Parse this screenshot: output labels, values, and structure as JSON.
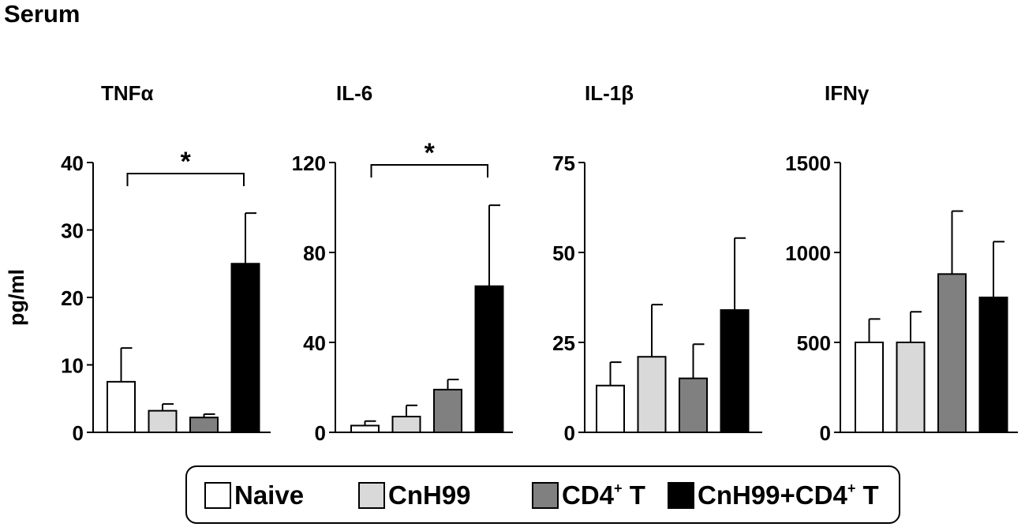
{
  "page": {
    "title": "Serum"
  },
  "legend": {
    "items": [
      {
        "label": "Naive",
        "sup": "",
        "suffix": "",
        "color": "#ffffff"
      },
      {
        "label": "CnH99",
        "sup": "",
        "suffix": "",
        "color": "#d9d9d9"
      },
      {
        "label": "CD4",
        "sup": "+",
        "suffix": " T",
        "color": "#808080"
      },
      {
        "label": "CnH99+CD4",
        "sup": "+",
        "suffix": " T",
        "color": "#000000"
      }
    ]
  },
  "chart_data": [
    {
      "type": "bar",
      "title": "TNFα",
      "ylabel": "pg/ml",
      "ylim": [
        0,
        40
      ],
      "yticks": [
        "0",
        "10",
        "20",
        "30",
        "40"
      ],
      "categories": [
        "Naive",
        "CnH99",
        "CD4+ T",
        "CnH99+CD4+ T"
      ],
      "values": [
        7.5,
        3.2,
        2.2,
        25
      ],
      "errors": [
        5,
        1,
        0.5,
        7.5
      ],
      "significance": {
        "label": "*",
        "from": 0,
        "to": 3
      }
    },
    {
      "type": "bar",
      "title": "IL-6",
      "ylabel": "",
      "ylim": [
        0,
        120
      ],
      "yticks": [
        "0",
        "40",
        "80",
        "120"
      ],
      "categories": [
        "Naive",
        "CnH99",
        "CD4+ T",
        "CnH99+CD4+ T"
      ],
      "values": [
        3,
        7,
        19,
        65
      ],
      "errors": [
        2,
        5,
        4.5,
        36
      ],
      "significance": {
        "label": "*",
        "from": 0,
        "to": 3
      }
    },
    {
      "type": "bar",
      "title": "IL-1β",
      "ylabel": "",
      "ylim": [
        0,
        75
      ],
      "yticks": [
        "0",
        "25",
        "50",
        "75"
      ],
      "categories": [
        "Naive",
        "CnH99",
        "CD4+ T",
        "CnH99+CD4+ T"
      ],
      "values": [
        13,
        21,
        15,
        34
      ],
      "errors": [
        6.5,
        14.5,
        9.5,
        20
      ],
      "significance": null
    },
    {
      "type": "bar",
      "title": "IFNγ",
      "ylabel": "",
      "ylim": [
        0,
        1500
      ],
      "yticks": [
        "0",
        "500",
        "1000",
        "1500"
      ],
      "categories": [
        "Naive",
        "CnH99",
        "CD4+ T",
        "CnH99+CD4+ T"
      ],
      "values": [
        500,
        500,
        880,
        750
      ],
      "errors": [
        130,
        170,
        350,
        310
      ],
      "significance": null
    }
  ]
}
